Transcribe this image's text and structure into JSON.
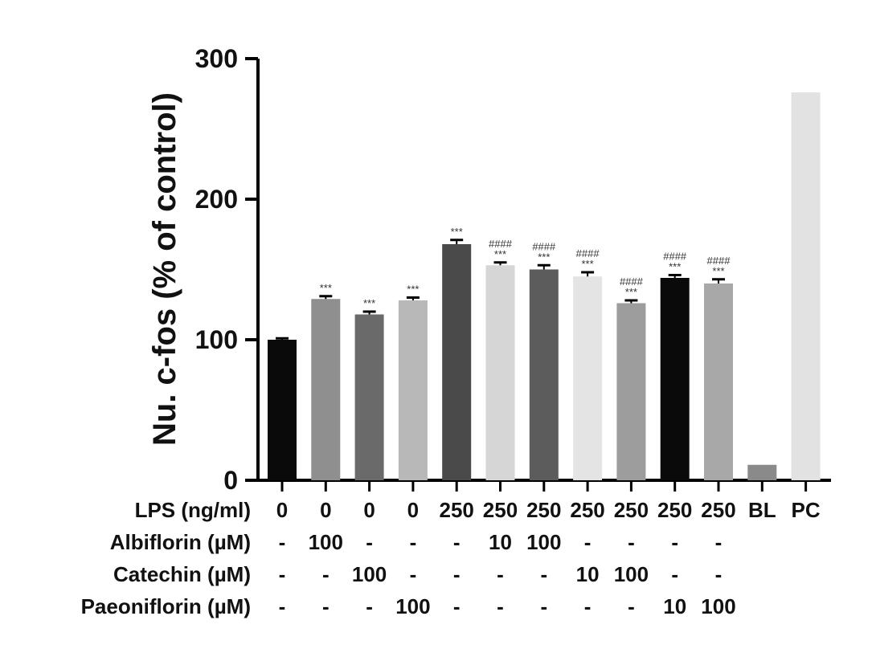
{
  "chart_data": {
    "type": "bar",
    "ylabel": "Nu. c-fos (% of control)",
    "ylim": [
      0,
      300
    ],
    "yticks": [
      "0",
      "100",
      "200",
      "300"
    ],
    "values": [
      100,
      129,
      118,
      128,
      168,
      153,
      150,
      145,
      126,
      144,
      140,
      11,
      276
    ],
    "errors": [
      1,
      2,
      2,
      2,
      3,
      2,
      3,
      3,
      2,
      2,
      3,
      0,
      0
    ],
    "fills": [
      "#0a0a0a",
      "#8f8f8f",
      "#6a6a6a",
      "#b8b8b8",
      "#4a4a4a",
      "#d6d6d6",
      "#5c5c5c",
      "#e4e4e4",
      "#9d9d9d",
      "#0a0a0a",
      "#a8a8a8",
      "#8a8a8a",
      "#e2e2e2"
    ],
    "significance_top": [
      "",
      "",
      "",
      "",
      "",
      "####",
      "####",
      "####",
      "####",
      "####",
      "####",
      "",
      ""
    ],
    "significance_bottom": [
      "",
      "***",
      "***",
      "***",
      "***",
      "***",
      "***",
      "***",
      "***",
      "***",
      "***",
      "",
      ""
    ],
    "conditions": [
      {
        "label": "LPS (ng/ml)",
        "cells": [
          "0",
          "0",
          "0",
          "0",
          "250",
          "250",
          "250",
          "250",
          "250",
          "250",
          "250",
          "BL",
          "PC"
        ]
      },
      {
        "label": "Albiflorin (µM)",
        "cells": [
          "-",
          "100",
          "-",
          "-",
          "-",
          "10",
          "100",
          "-",
          "-",
          "-",
          "-",
          "",
          ""
        ]
      },
      {
        "label": "Catechin (µM)",
        "cells": [
          "-",
          "-",
          "100",
          "-",
          "-",
          "-",
          "-",
          "10",
          "100",
          "-",
          "-",
          "",
          ""
        ]
      },
      {
        "label": "Paeoniflorin (µM)",
        "cells": [
          "-",
          "-",
          "-",
          "100",
          "-",
          "-",
          "-",
          "-",
          "-",
          "10",
          "100",
          "",
          ""
        ]
      }
    ]
  }
}
